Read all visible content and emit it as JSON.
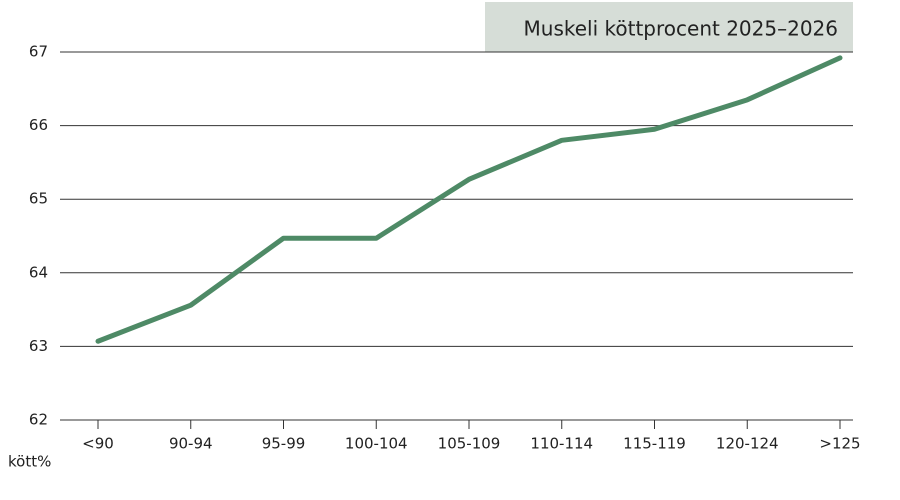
{
  "chart_data": {
    "type": "line",
    "title": "Muskeli köttprocent 2025–2026",
    "y_label": "kött%",
    "categories": [
      "<90",
      "90-94",
      "95-99",
      "100-104",
      "105-109",
      "110-114",
      "115-119",
      "120-124",
      ">125"
    ],
    "values": [
      63.07,
      63.56,
      64.47,
      64.47,
      65.27,
      65.8,
      65.95,
      66.35,
      66.92
    ],
    "color": "#4e8a66",
    "ylim": [
      62,
      67
    ],
    "yticks": [
      62,
      63,
      64,
      65,
      66,
      67
    ],
    "grid": true
  }
}
